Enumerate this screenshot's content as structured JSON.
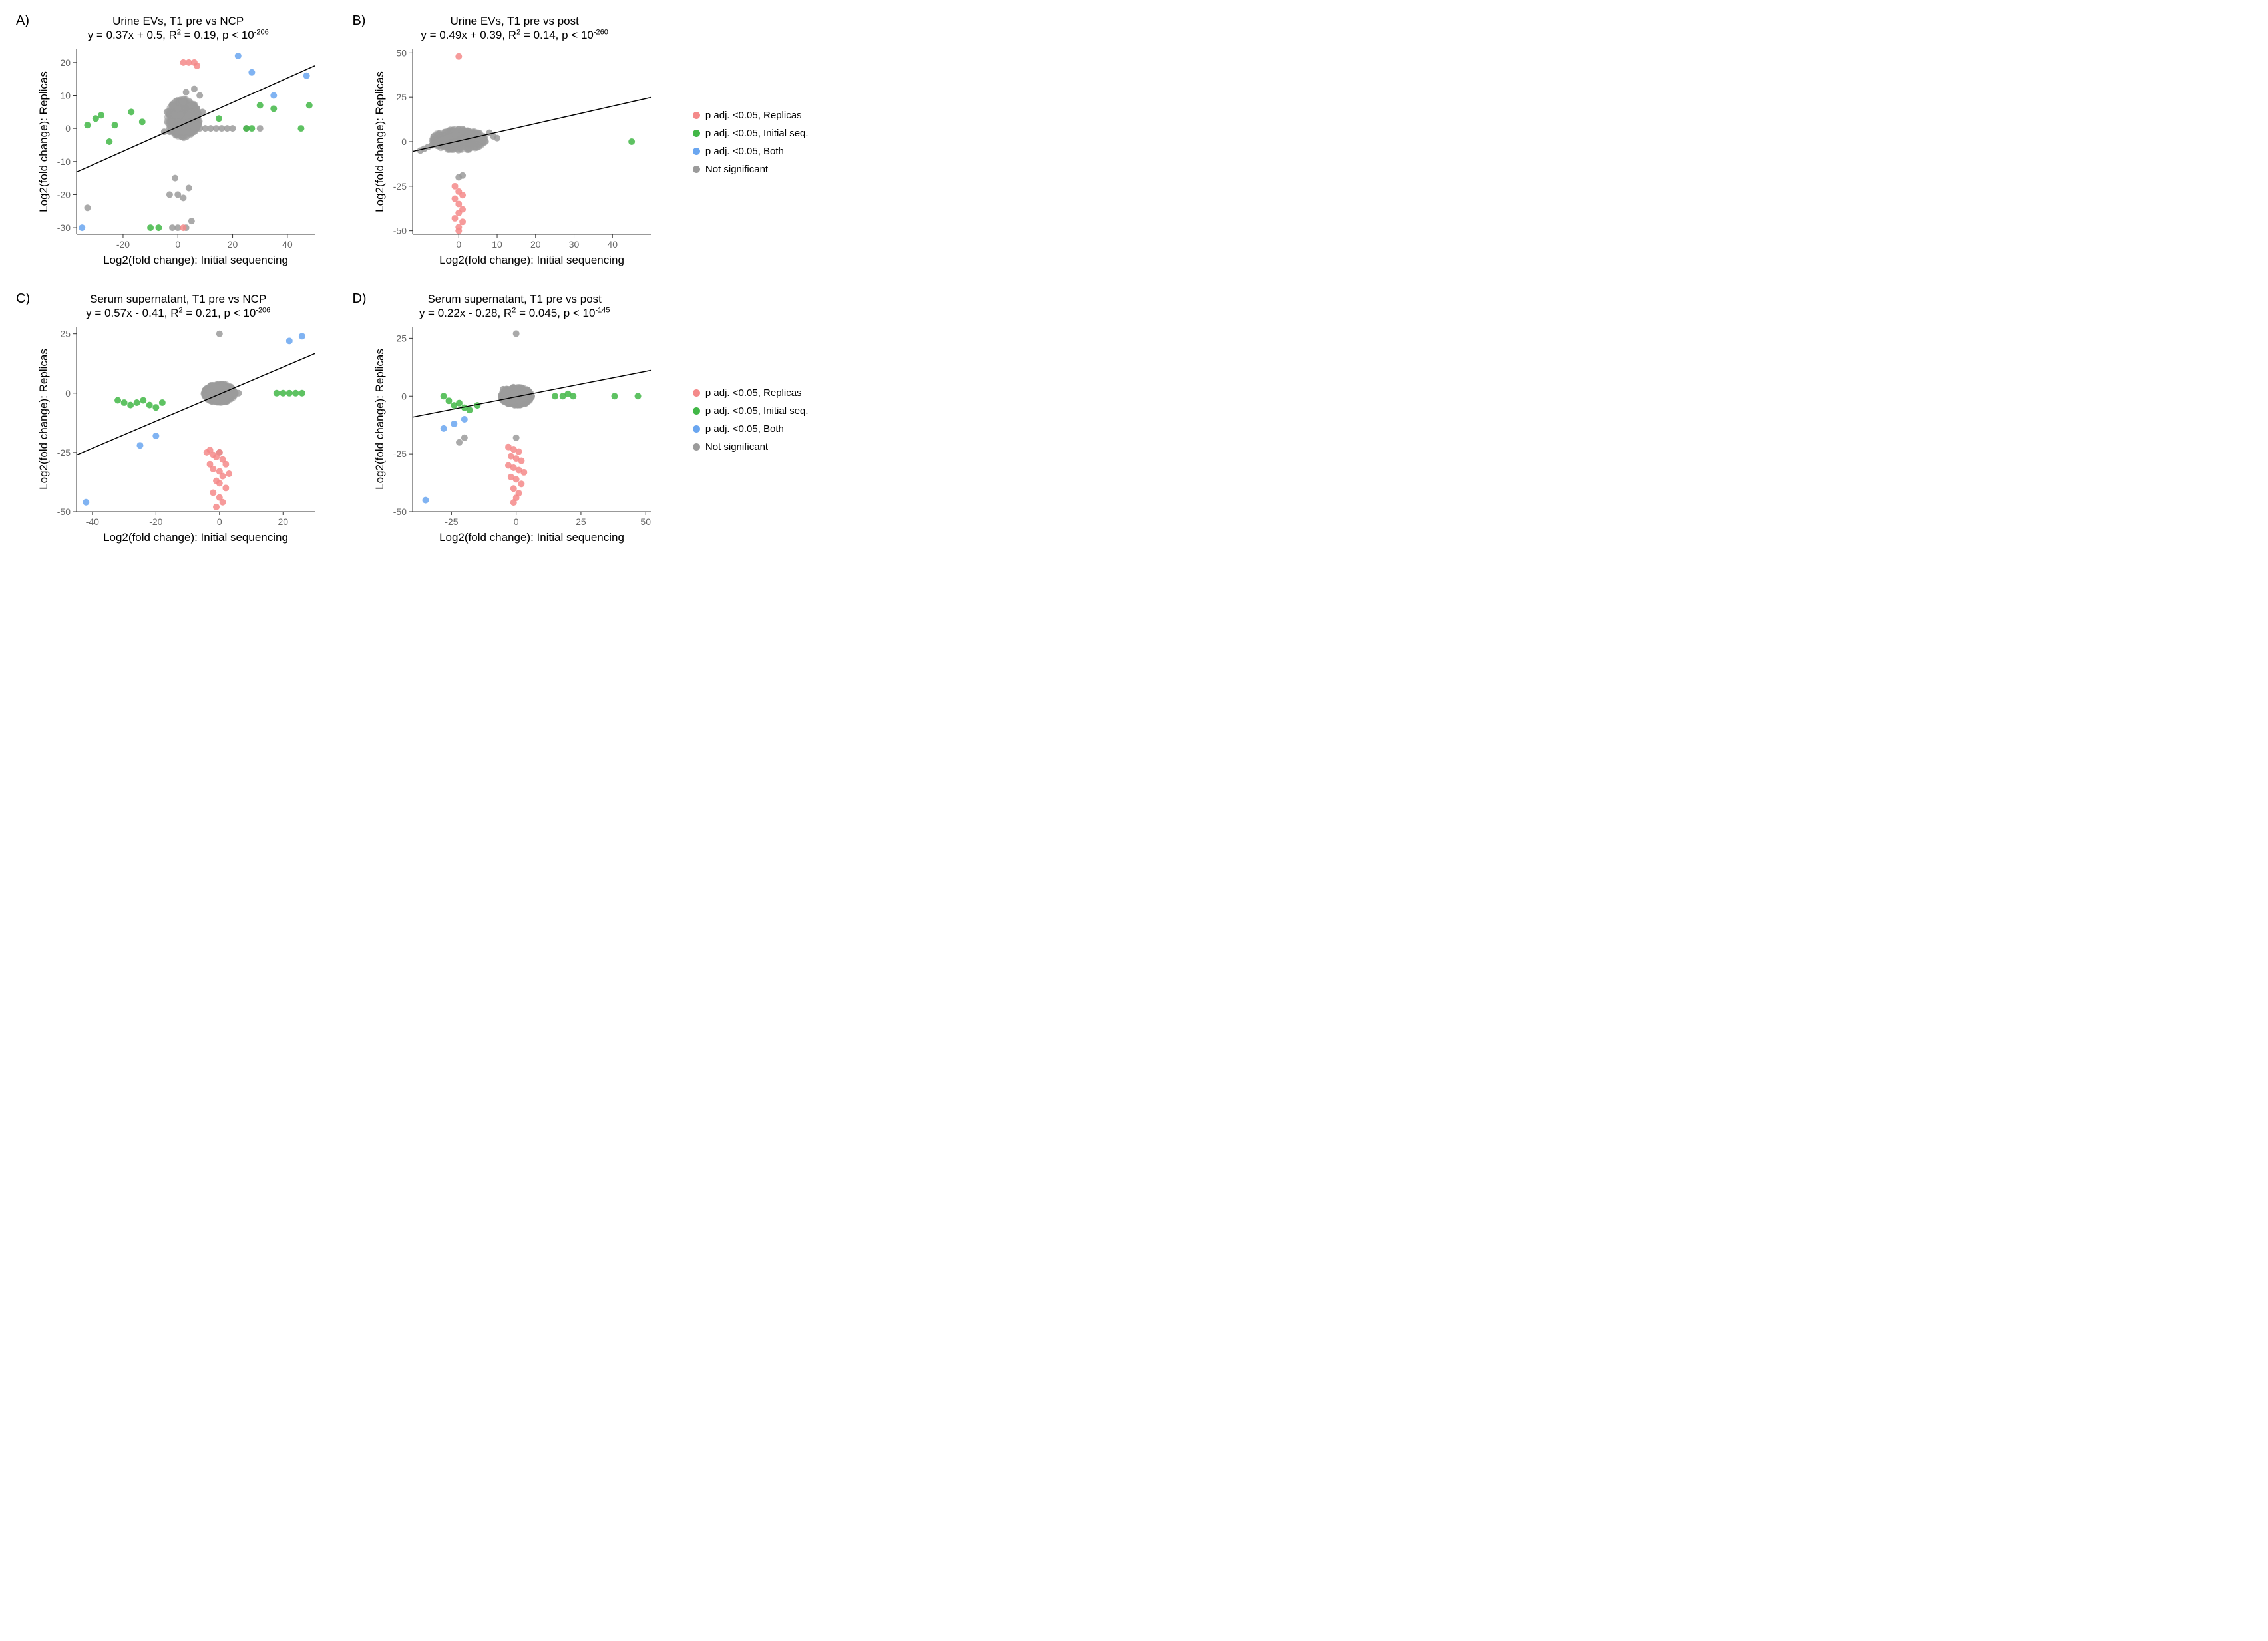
{
  "colors": {
    "replicas": "#f48a8a",
    "initial": "#42b747",
    "both": "#6aa6f0",
    "ns": "#9b9b9b",
    "bg": "#ffffff",
    "tick": "#666666",
    "axis": "#333333",
    "line": "#000000"
  },
  "legend": [
    {
      "key": "replicas",
      "label": "p adj. <0.05, Replicas"
    },
    {
      "key": "initial",
      "label": "p adj. <0.05, Initial seq."
    },
    {
      "key": "both",
      "label": "p adj. <0.05, Both"
    },
    {
      "key": "ns",
      "label": "Not significant"
    }
  ],
  "axis": {
    "x": "Log2(fold change): Initial sequencing",
    "y": "Log2(fold change): Replicas"
  },
  "fontsize": {
    "title": 17,
    "axis_label": 17,
    "tick": 14,
    "panel_label": 20,
    "legend": 15
  },
  "marker": {
    "radius": 5,
    "opacity": 0.85
  },
  "panels": {
    "A": {
      "label": "A)",
      "title1": "Urine EVs, T1 pre vs NCP",
      "title2_html": "y = 0.37x + 0.5, R<sup>2</sup> = 0.19, p < 10<sup>-206</sup>",
      "xlim": [
        -37,
        50
      ],
      "ylim": [
        -32,
        24
      ],
      "xticks": [
        -20,
        0,
        20,
        40
      ],
      "yticks": [
        -30,
        -20,
        -10,
        0,
        10,
        20
      ],
      "fit": {
        "slope": 0.37,
        "intercept": 0.5
      },
      "points": {
        "ns": [
          [
            -33,
            -24
          ],
          [
            -2,
            -30
          ],
          [
            0,
            -30
          ],
          [
            3,
            -30
          ],
          [
            5,
            -28
          ],
          [
            -3,
            -20
          ],
          [
            0,
            -20
          ],
          [
            2,
            -21
          ],
          [
            4,
            -18
          ],
          [
            -1,
            -15
          ],
          [
            6,
            12
          ],
          [
            8,
            10
          ],
          [
            3,
            11
          ],
          [
            -4,
            5
          ],
          [
            -2,
            7
          ],
          [
            0,
            6
          ],
          [
            2,
            8
          ],
          [
            5,
            7
          ],
          [
            7,
            6
          ],
          [
            9,
            5
          ],
          [
            -1,
            4
          ],
          [
            1,
            4
          ],
          [
            3,
            3
          ],
          [
            4,
            4
          ],
          [
            6,
            4
          ],
          [
            -2,
            2
          ],
          [
            0,
            2
          ],
          [
            2,
            2
          ],
          [
            4,
            2
          ],
          [
            5,
            1
          ],
          [
            7,
            1
          ],
          [
            -3,
            0
          ],
          [
            -1,
            0
          ],
          [
            1,
            0
          ],
          [
            3,
            0
          ],
          [
            6,
            0
          ],
          [
            8,
            0
          ],
          [
            10,
            0
          ],
          [
            12,
            0
          ],
          [
            14,
            0
          ],
          [
            16,
            0
          ],
          [
            18,
            0
          ],
          [
            20,
            0
          ],
          [
            25,
            0
          ],
          [
            30,
            0
          ],
          [
            -5,
            -1
          ],
          [
            -3,
            -1
          ],
          [
            0,
            -1
          ],
          [
            2,
            -1
          ],
          [
            4,
            -1
          ],
          [
            6,
            -1
          ]
        ],
        "replicas": [
          [
            2,
            20
          ],
          [
            4,
            20
          ],
          [
            7,
            19
          ],
          [
            6,
            20
          ],
          [
            2,
            -30
          ]
        ],
        "initial": [
          [
            -33,
            1
          ],
          [
            -30,
            3
          ],
          [
            -28,
            4
          ],
          [
            -25,
            -4
          ],
          [
            -23,
            1
          ],
          [
            -17,
            5
          ],
          [
            -13,
            2
          ],
          [
            -10,
            -30
          ],
          [
            -7,
            -30
          ],
          [
            15,
            3
          ],
          [
            25,
            0
          ],
          [
            27,
            0
          ],
          [
            30,
            7
          ],
          [
            35,
            6
          ],
          [
            45,
            0
          ],
          [
            48,
            7
          ]
        ],
        "both": [
          [
            -35,
            -30
          ],
          [
            22,
            22
          ],
          [
            27,
            17
          ],
          [
            35,
            10
          ],
          [
            47,
            16
          ]
        ]
      }
    },
    "B": {
      "label": "B)",
      "title1": "Urine EVs, T1 pre vs post",
      "title2_html": "y = 0.49x + 0.39, R<sup>2</sup> = 0.14, p < 10<sup>-260</sup>",
      "xlim": [
        -12,
        50
      ],
      "ylim": [
        -52,
        52
      ],
      "xticks": [
        0,
        10,
        20,
        30,
        40
      ],
      "yticks": [
        -50,
        -25,
        0,
        25,
        50
      ],
      "fit": {
        "slope": 0.49,
        "intercept": 0.39
      },
      "points": {
        "ns": [
          [
            -10,
            -5
          ],
          [
            -9,
            -4
          ],
          [
            -8,
            -3
          ],
          [
            -7,
            -2
          ],
          [
            -6,
            -1
          ],
          [
            -5,
            0
          ],
          [
            -4,
            1
          ],
          [
            -3,
            2
          ],
          [
            -2,
            3
          ],
          [
            -1,
            4
          ],
          [
            0,
            5
          ],
          [
            1,
            6
          ],
          [
            2,
            5
          ],
          [
            3,
            4
          ],
          [
            4,
            3
          ],
          [
            5,
            2
          ],
          [
            6,
            1
          ],
          [
            7,
            0
          ],
          [
            8,
            5
          ],
          [
            9,
            3
          ],
          [
            10,
            2
          ],
          [
            -3,
            -3
          ],
          [
            -2,
            -2
          ],
          [
            -1,
            -1
          ],
          [
            0,
            0
          ],
          [
            1,
            1
          ],
          [
            2,
            2
          ],
          [
            3,
            3
          ],
          [
            4,
            4
          ],
          [
            5,
            5
          ],
          [
            -1,
            6
          ],
          [
            0,
            7
          ],
          [
            1,
            7
          ],
          [
            2,
            6
          ],
          [
            0,
            -20
          ],
          [
            1,
            -19
          ]
        ],
        "replicas": [
          [
            0,
            48
          ],
          [
            -1,
            -25
          ],
          [
            0,
            -28
          ],
          [
            1,
            -30
          ],
          [
            -1,
            -32
          ],
          [
            0,
            -35
          ],
          [
            1,
            -38
          ],
          [
            0,
            -40
          ],
          [
            -1,
            -43
          ],
          [
            1,
            -45
          ],
          [
            0,
            -48
          ],
          [
            0,
            -50
          ]
        ],
        "initial": [
          [
            45,
            0
          ]
        ],
        "both": []
      }
    },
    "C": {
      "label": "C)",
      "title1": "Serum supernatant, T1 pre vs NCP",
      "title2_html": "y = 0.57x - 0.41, R<sup>2</sup> = 0.21, p < 10<sup>-206</sup>",
      "xlim": [
        -45,
        30
      ],
      "ylim": [
        -50,
        28
      ],
      "xticks": [
        -40,
        -20,
        0,
        20
      ],
      "yticks": [
        -50,
        -25,
        0,
        25
      ],
      "fit": {
        "slope": 0.57,
        "intercept": -0.41
      },
      "points": {
        "ns": [
          [
            0,
            25
          ],
          [
            -2,
            3
          ],
          [
            -1,
            2
          ],
          [
            0,
            2
          ],
          [
            1,
            3
          ],
          [
            2,
            2
          ],
          [
            3,
            1
          ],
          [
            -3,
            1
          ],
          [
            -2,
            0
          ],
          [
            -1,
            0
          ],
          [
            0,
            0
          ],
          [
            1,
            0
          ],
          [
            2,
            0
          ],
          [
            3,
            0
          ],
          [
            4,
            0
          ],
          [
            5,
            0
          ],
          [
            6,
            0
          ],
          [
            -4,
            -1
          ],
          [
            -3,
            -1
          ],
          [
            -2,
            -1
          ],
          [
            -1,
            -1
          ],
          [
            0,
            -1
          ],
          [
            1,
            -1
          ],
          [
            2,
            -1
          ],
          [
            3,
            -1
          ],
          [
            -2,
            -2
          ],
          [
            -1,
            -2
          ],
          [
            0,
            -2
          ],
          [
            1,
            -2
          ],
          [
            2,
            -2
          ],
          [
            -1,
            -3
          ],
          [
            0,
            -3
          ],
          [
            1,
            -3
          ],
          [
            0,
            -25
          ]
        ],
        "replicas": [
          [
            -4,
            -25
          ],
          [
            -3,
            -24
          ],
          [
            -2,
            -26
          ],
          [
            -1,
            -27
          ],
          [
            0,
            -25
          ],
          [
            1,
            -28
          ],
          [
            2,
            -30
          ],
          [
            -3,
            -30
          ],
          [
            -2,
            -32
          ],
          [
            0,
            -33
          ],
          [
            1,
            -35
          ],
          [
            3,
            -34
          ],
          [
            -1,
            -37
          ],
          [
            0,
            -38
          ],
          [
            2,
            -40
          ],
          [
            -2,
            -42
          ],
          [
            0,
            -44
          ],
          [
            1,
            -46
          ],
          [
            -1,
            -48
          ]
        ],
        "initial": [
          [
            -32,
            -3
          ],
          [
            -30,
            -4
          ],
          [
            -28,
            -5
          ],
          [
            -26,
            -4
          ],
          [
            -24,
            -3
          ],
          [
            -22,
            -5
          ],
          [
            -20,
            -6
          ],
          [
            -18,
            -4
          ],
          [
            18,
            0
          ],
          [
            20,
            0
          ],
          [
            22,
            0
          ],
          [
            24,
            0
          ],
          [
            26,
            0
          ]
        ],
        "both": [
          [
            -42,
            -46
          ],
          [
            -25,
            -22
          ],
          [
            -20,
            -18
          ],
          [
            22,
            22
          ],
          [
            26,
            24
          ]
        ]
      }
    },
    "D": {
      "label": "D)",
      "title1": "Serum supernatant, T1 pre vs post",
      "title2_html": "y = 0.22x - 0.28, R<sup>2</sup> = 0.045, p < 10<sup>-145</sup>",
      "xlim": [
        -40,
        52
      ],
      "ylim": [
        -50,
        30
      ],
      "xticks": [
        -25,
        0,
        25,
        50
      ],
      "yticks": [
        -50,
        -25,
        0,
        25
      ],
      "fit": {
        "slope": 0.22,
        "intercept": -0.28
      },
      "points": {
        "ns": [
          [
            0,
            27
          ],
          [
            -5,
            3
          ],
          [
            -4,
            2
          ],
          [
            -3,
            2
          ],
          [
            -2,
            1
          ],
          [
            -1,
            1
          ],
          [
            0,
            1
          ],
          [
            1,
            1
          ],
          [
            2,
            1
          ],
          [
            3,
            1
          ],
          [
            4,
            1
          ],
          [
            5,
            1
          ],
          [
            -5,
            0
          ],
          [
            -4,
            0
          ],
          [
            -3,
            0
          ],
          [
            -2,
            0
          ],
          [
            -1,
            0
          ],
          [
            0,
            0
          ],
          [
            1,
            0
          ],
          [
            2,
            0
          ],
          [
            3,
            0
          ],
          [
            4,
            0
          ],
          [
            5,
            0
          ],
          [
            6,
            0
          ],
          [
            -5,
            -1
          ],
          [
            -4,
            -1
          ],
          [
            -3,
            -1
          ],
          [
            -2,
            -1
          ],
          [
            -1,
            -1
          ],
          [
            0,
            -1
          ],
          [
            1,
            -1
          ],
          [
            2,
            -1
          ],
          [
            3,
            -1
          ],
          [
            -4,
            -2
          ],
          [
            -3,
            -2
          ],
          [
            -2,
            -2
          ],
          [
            -1,
            -2
          ],
          [
            0,
            -2
          ],
          [
            1,
            -2
          ],
          [
            -22,
            -20
          ],
          [
            -20,
            -18
          ],
          [
            0,
            -18
          ]
        ],
        "replicas": [
          [
            -3,
            -22
          ],
          [
            -1,
            -23
          ],
          [
            1,
            -24
          ],
          [
            -2,
            -26
          ],
          [
            0,
            -27
          ],
          [
            2,
            -28
          ],
          [
            -3,
            -30
          ],
          [
            -1,
            -31
          ],
          [
            1,
            -32
          ],
          [
            3,
            -33
          ],
          [
            -2,
            -35
          ],
          [
            0,
            -36
          ],
          [
            2,
            -38
          ],
          [
            -1,
            -40
          ],
          [
            1,
            -42
          ],
          [
            0,
            -44
          ],
          [
            -1,
            -46
          ]
        ],
        "initial": [
          [
            -28,
            0
          ],
          [
            -26,
            -2
          ],
          [
            -24,
            -4
          ],
          [
            -22,
            -3
          ],
          [
            -20,
            -5
          ],
          [
            -18,
            -6
          ],
          [
            -15,
            -4
          ],
          [
            15,
            0
          ],
          [
            18,
            0
          ],
          [
            20,
            1
          ],
          [
            22,
            0
          ],
          [
            38,
            0
          ],
          [
            47,
            0
          ]
        ],
        "both": [
          [
            -35,
            -45
          ],
          [
            -28,
            -14
          ],
          [
            -24,
            -12
          ],
          [
            -20,
            -10
          ]
        ]
      }
    }
  }
}
